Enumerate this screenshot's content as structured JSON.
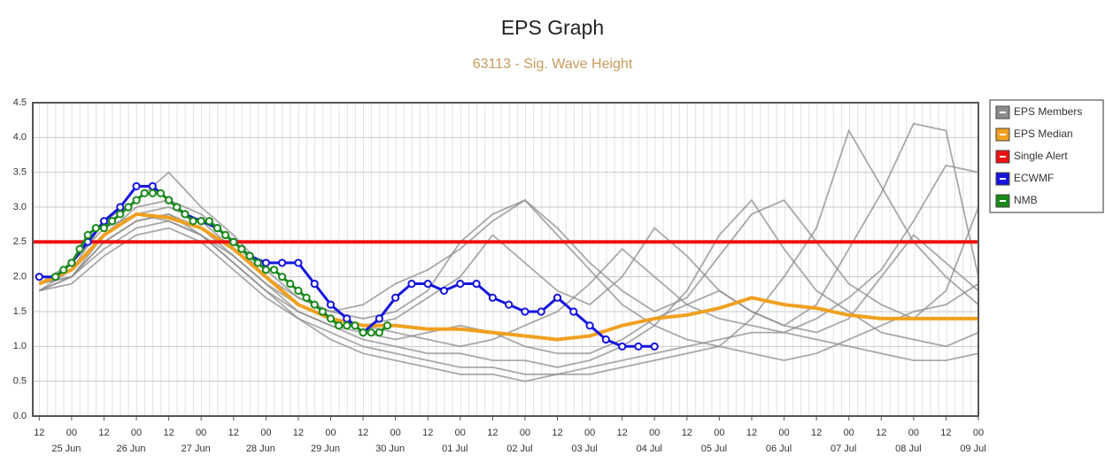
{
  "chart_data": {
    "type": "line",
    "title": "EPS Graph",
    "subtitle": "63113 - Sig. Wave Height",
    "xlim": [
      -0.2,
      29
    ],
    "ylim": [
      0,
      4.5
    ],
    "yticks": [
      {
        "value": 0,
        "label": "0.0"
      },
      0.5,
      {
        "value": 1,
        "label": "1.0"
      },
      1.5,
      {
        "value": 2,
        "label": "2.0"
      },
      2.5,
      {
        "value": 3,
        "label": "3.0"
      },
      3.5,
      {
        "value": 4,
        "label": "4.0"
      },
      4.5
    ],
    "xticks": [
      {
        "value": 0,
        "label": "12"
      },
      {
        "value": 1,
        "label": "00"
      },
      {
        "value": 2,
        "label": "12"
      },
      {
        "value": 3,
        "label": "00"
      },
      {
        "value": 4,
        "label": "12"
      },
      {
        "value": 5,
        "label": "00"
      },
      {
        "value": 6,
        "label": "12"
      },
      {
        "value": 7,
        "label": "00"
      },
      {
        "value": 8,
        "label": "12"
      },
      {
        "value": 9,
        "label": "00"
      },
      {
        "value": 10,
        "label": "12"
      },
      {
        "value": 11,
        "label": "00"
      },
      {
        "value": 12,
        "label": "12"
      },
      {
        "value": 13,
        "label": "00"
      },
      {
        "value": 14,
        "label": "12"
      },
      {
        "value": 15,
        "label": "00"
      },
      {
        "value": 16,
        "label": "12"
      },
      {
        "value": 17,
        "label": "00"
      },
      {
        "value": 18,
        "label": "12"
      },
      {
        "value": 19,
        "label": "00"
      },
      {
        "value": 20,
        "label": "12"
      },
      {
        "value": 21,
        "label": "00"
      },
      {
        "value": 22,
        "label": "12"
      },
      {
        "value": 23,
        "label": "00"
      },
      {
        "value": 24,
        "label": "12"
      },
      {
        "value": 25,
        "label": "00"
      },
      {
        "value": 26,
        "label": "12"
      },
      {
        "value": 27,
        "label": "00"
      },
      {
        "value": 28,
        "label": "12"
      },
      {
        "value": 29,
        "label": "00"
      }
    ],
    "xdates": [
      {
        "value": 1,
        "label": "25 Jun"
      },
      {
        "value": 3,
        "label": "26 Jun"
      },
      {
        "value": 5,
        "label": "27 Jun"
      },
      {
        "value": 7,
        "label": "28 Jun"
      },
      {
        "value": 9,
        "label": "29 Jun"
      },
      {
        "value": 11,
        "label": "30 Jun"
      },
      {
        "value": 13,
        "label": "01 Jul"
      },
      {
        "value": 15,
        "label": "02 Jul"
      },
      {
        "value": 17,
        "label": "03 Jul"
      },
      {
        "value": 19,
        "label": "04 Jul"
      },
      {
        "value": 21,
        "label": "05 Jul"
      },
      {
        "value": 23,
        "label": "06 Jul"
      },
      {
        "value": 25,
        "label": "07 Jul"
      },
      {
        "value": 27,
        "label": "08 Jul"
      },
      {
        "value": 29,
        "label": "09 Jul"
      }
    ],
    "grid": true,
    "legend": "right",
    "x": [
      0,
      1,
      2,
      3,
      4,
      5,
      6,
      7,
      8,
      9,
      10,
      11,
      12,
      13,
      14,
      15,
      16,
      17,
      18,
      19,
      20,
      21,
      22,
      23,
      24,
      25,
      26,
      27,
      28,
      29
    ],
    "members": {
      "name": "EPS Members",
      "color": "#8c8c8c",
      "values": [
        [
          1.9,
          2.0,
          2.5,
          2.8,
          2.9,
          2.7,
          2.3,
          1.9,
          1.5,
          1.3,
          1.1,
          1.0,
          0.9,
          0.9,
          0.8,
          0.8,
          0.7,
          0.8,
          1.0,
          1.3,
          1.8,
          2.6,
          3.1,
          2.4,
          1.8,
          1.5,
          1.2,
          1.1,
          1.0,
          1.2
        ],
        [
          1.8,
          2.1,
          2.8,
          3.1,
          3.5,
          3.0,
          2.6,
          2.1,
          1.7,
          1.5,
          1.6,
          1.9,
          2.1,
          2.4,
          2.8,
          3.1,
          2.6,
          2.1,
          1.6,
          1.3,
          1.1,
          1.0,
          1.4,
          2.0,
          2.7,
          4.1,
          3.3,
          2.5,
          2.0,
          1.6
        ],
        [
          1.9,
          2.0,
          2.4,
          2.7,
          2.8,
          2.6,
          2.2,
          1.8,
          1.4,
          1.2,
          1.0,
          0.9,
          0.8,
          0.7,
          0.7,
          0.6,
          0.6,
          0.7,
          0.8,
          0.9,
          1.0,
          1.1,
          1.2,
          1.2,
          1.1,
          1.0,
          0.9,
          0.8,
          0.8,
          0.9
        ],
        [
          1.8,
          2.0,
          2.6,
          3.0,
          3.1,
          2.9,
          2.5,
          2.0,
          1.6,
          1.4,
          1.3,
          1.4,
          1.7,
          2.0,
          2.6,
          2.2,
          1.8,
          1.6,
          2.0,
          2.7,
          2.3,
          1.8,
          1.5,
          1.3,
          1.6,
          2.4,
          3.2,
          4.2,
          4.1,
          2.0
        ],
        [
          1.9,
          2.2,
          2.7,
          2.9,
          2.8,
          2.6,
          2.3,
          1.9,
          1.6,
          1.4,
          1.3,
          1.2,
          1.1,
          1.0,
          1.1,
          1.3,
          1.5,
          1.9,
          2.4,
          2.0,
          1.6,
          1.4,
          1.3,
          1.2,
          1.4,
          1.7,
          2.1,
          2.8,
          3.6,
          3.5
        ],
        [
          1.8,
          1.9,
          2.3,
          2.6,
          2.7,
          2.5,
          2.1,
          1.7,
          1.4,
          1.1,
          0.9,
          0.8,
          0.7,
          0.6,
          0.6,
          0.5,
          0.6,
          0.6,
          0.7,
          0.8,
          0.9,
          1.0,
          0.9,
          0.8,
          0.9,
          1.1,
          1.3,
          1.5,
          1.6,
          1.9
        ],
        [
          1.9,
          2.1,
          2.6,
          2.9,
          3.0,
          2.8,
          2.4,
          2.0,
          1.7,
          1.5,
          1.4,
          1.5,
          1.8,
          2.5,
          2.9,
          3.1,
          2.7,
          2.2,
          1.8,
          1.5,
          1.7,
          2.3,
          2.9,
          3.1,
          2.5,
          1.9,
          1.6,
          1.4,
          1.8,
          3.0
        ],
        [
          1.8,
          2.0,
          2.5,
          2.8,
          2.9,
          2.6,
          2.2,
          1.8,
          1.5,
          1.3,
          1.2,
          1.1,
          1.2,
          1.3,
          1.2,
          1.0,
          0.9,
          0.9,
          1.1,
          1.4,
          1.6,
          1.8,
          1.5,
          1.3,
          1.2,
          1.4,
          2.0,
          2.6,
          2.2,
          1.8
        ]
      ]
    },
    "series": [
      {
        "name": "EPS Median",
        "color": "#f0a020",
        "values": [
          1.9,
          2.1,
          2.6,
          2.9,
          2.85,
          2.7,
          2.4,
          2.0,
          1.6,
          1.4,
          1.3,
          1.3,
          1.25,
          1.25,
          1.2,
          1.15,
          1.1,
          1.15,
          1.3,
          1.4,
          1.45,
          1.55,
          1.7,
          1.6,
          1.55,
          1.45,
          1.4,
          1.4,
          1.4,
          1.4
        ]
      },
      {
        "name": "Single Alert",
        "color": "#ee1111",
        "x": [
          -0.2,
          29
        ],
        "values": [
          2.5,
          2.5
        ]
      },
      {
        "name": "ECWMF",
        "color": "#1515dd",
        "markers": true,
        "x": [
          0,
          0.5,
          1,
          1.5,
          2,
          2.5,
          3,
          3.5,
          4,
          4.5,
          5,
          5.5,
          6,
          6.5,
          7,
          7.5,
          8,
          8.5,
          9,
          9.5,
          10,
          10.5,
          11,
          11.5,
          12,
          12.5,
          13,
          13.5,
          14,
          14.5,
          15,
          15.5,
          16,
          16.5,
          17,
          17.5,
          18,
          18.5,
          19
        ],
        "values": [
          2.0,
          2.0,
          2.2,
          2.5,
          2.8,
          3.0,
          3.3,
          3.3,
          3.1,
          2.9,
          2.8,
          2.7,
          2.5,
          2.3,
          2.2,
          2.2,
          2.2,
          1.9,
          1.6,
          1.4,
          1.2,
          1.4,
          1.7,
          1.9,
          1.9,
          1.8,
          1.9,
          1.9,
          1.7,
          1.6,
          1.5,
          1.5,
          1.7,
          1.5,
          1.3,
          1.1,
          1.0,
          1.0,
          1.0
        ]
      },
      {
        "name": "NMB",
        "color": "#1a8a1a",
        "markers": true,
        "x": [
          0.5,
          0.75,
          1,
          1.25,
          1.5,
          1.75,
          2,
          2.25,
          2.5,
          2.75,
          3,
          3.25,
          3.5,
          3.75,
          4,
          4.25,
          4.5,
          4.75,
          5,
          5.25,
          5.5,
          5.75,
          6,
          6.25,
          6.5,
          6.75,
          7,
          7.25,
          7.5,
          7.75,
          8,
          8.25,
          8.5,
          8.75,
          9,
          9.25,
          9.5,
          9.75,
          10,
          10.25,
          10.5,
          10.75
        ],
        "values": [
          2.0,
          2.1,
          2.2,
          2.4,
          2.6,
          2.7,
          2.7,
          2.8,
          2.9,
          3.0,
          3.1,
          3.2,
          3.2,
          3.2,
          3.1,
          3.0,
          2.9,
          2.8,
          2.8,
          2.8,
          2.7,
          2.6,
          2.5,
          2.4,
          2.3,
          2.2,
          2.1,
          2.1,
          2.0,
          1.9,
          1.8,
          1.7,
          1.6,
          1.5,
          1.4,
          1.3,
          1.3,
          1.3,
          1.2,
          1.2,
          1.2,
          1.3
        ]
      }
    ]
  }
}
